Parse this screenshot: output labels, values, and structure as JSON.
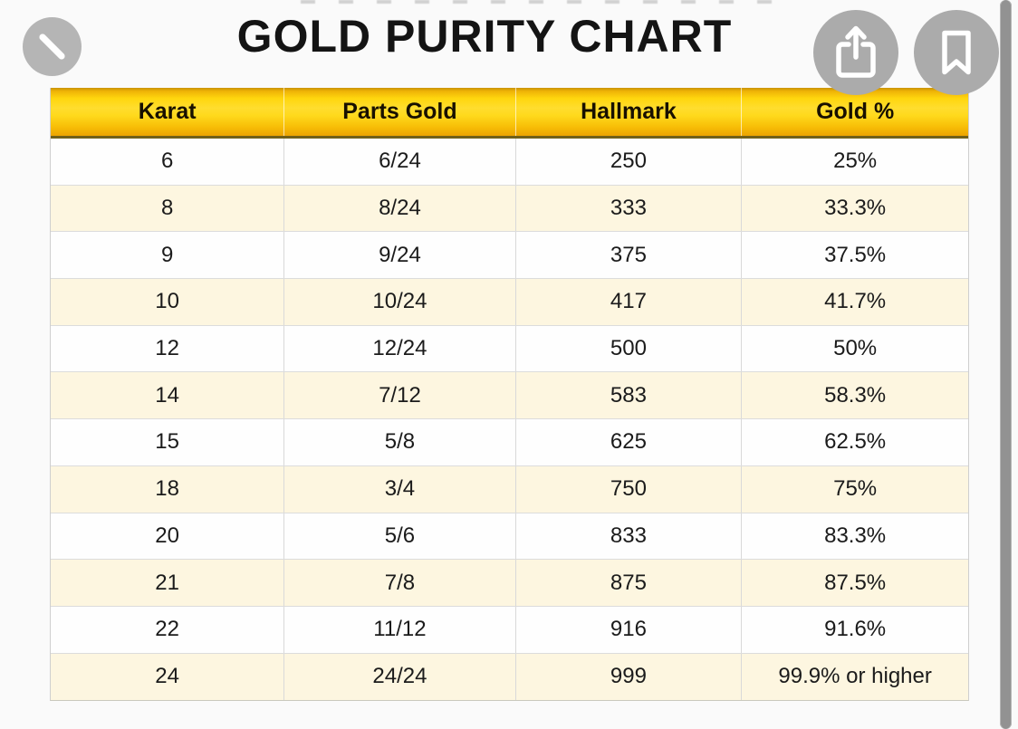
{
  "viewer": {
    "close_icon": "close-x",
    "share_icon": "share-arrow-up",
    "bookmark_icon": "bookmark-ribbon",
    "button_color": "#ababab",
    "close_button_color": "#b5b5b5",
    "scrollbar_color": "#929292"
  },
  "colors": {
    "header_gradient_top": "#efb306",
    "header_gradient_bright": "#ffdd2e",
    "header_gradient_bottom": "#eca300",
    "header_bottom_border": "#716018",
    "row_alt_cream": "#fdf6e0",
    "row_white": "#fefefe",
    "grid_line": "#d9d9d9",
    "title_color": "#141414"
  },
  "chart_data": {
    "type": "table",
    "title": "GOLD PURITY CHART",
    "columns": [
      "Karat",
      "Parts Gold",
      "Hallmark",
      "Gold %"
    ],
    "rows": [
      [
        "6",
        "6/24",
        "250",
        "25%"
      ],
      [
        "8",
        "8/24",
        "333",
        "33.3%"
      ],
      [
        "9",
        "9/24",
        "375",
        "37.5%"
      ],
      [
        "10",
        "10/24",
        "417",
        "41.7%"
      ],
      [
        "12",
        "12/24",
        "500",
        "50%"
      ],
      [
        "14",
        "7/12",
        "583",
        "58.3%"
      ],
      [
        "15",
        "5/8",
        "625",
        "62.5%"
      ],
      [
        "18",
        "3/4",
        "750",
        "75%"
      ],
      [
        "20",
        "5/6",
        "833",
        "83.3%"
      ],
      [
        "21",
        "7/8",
        "875",
        "87.5%"
      ],
      [
        "22",
        "11/12",
        "916",
        "91.6%"
      ],
      [
        "24",
        "24/24",
        "999",
        "99.9% or higher"
      ]
    ]
  }
}
